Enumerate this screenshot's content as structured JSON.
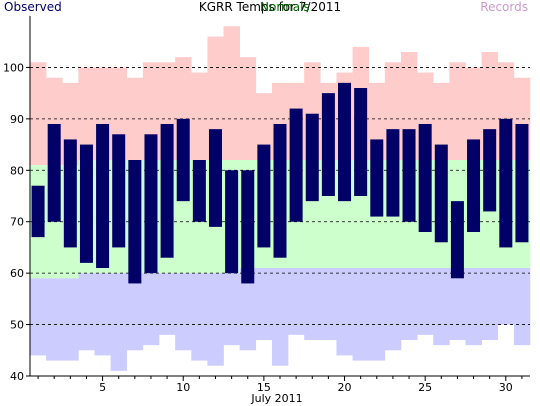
{
  "chart_data": {
    "type": "bar",
    "title": "KGRR Temps for 7/2011",
    "legend": {
      "observed_label": "Observed",
      "normals_label": "Normals",
      "records_label": "Records",
      "placement": "top"
    },
    "xlabel": "July 2011",
    "ylabel": "",
    "xlim": [
      1,
      31
    ],
    "ylim": [
      40,
      110
    ],
    "x_ticks": [
      5,
      10,
      15,
      20,
      25,
      30
    ],
    "y_ticks": [
      40,
      50,
      60,
      70,
      80,
      90,
      100
    ],
    "grid": "horizontal dashed",
    "colors": {
      "observed": "#000066",
      "normals": "#ccffcc",
      "record_high": "#ffcccc",
      "record_low": "#ccccff",
      "legend_observed": "#000066",
      "legend_normals": "#006600",
      "legend_records": "#cc99cc"
    },
    "days": [
      1,
      2,
      3,
      4,
      5,
      6,
      7,
      8,
      9,
      10,
      11,
      12,
      13,
      14,
      15,
      16,
      17,
      18,
      19,
      20,
      21,
      22,
      23,
      24,
      25,
      26,
      27,
      28,
      29,
      30,
      31
    ],
    "series": [
      {
        "name": "Observed",
        "high": [
          77,
          89,
          86,
          85,
          89,
          87,
          82,
          87,
          89,
          90,
          82,
          88,
          80,
          80,
          85,
          89,
          92,
          91,
          95,
          97,
          96,
          86,
          88,
          88,
          89,
          85,
          74,
          86,
          88,
          90,
          89
        ],
        "low": [
          67,
          70,
          65,
          62,
          61,
          65,
          58,
          60,
          63,
          74,
          70,
          69,
          60,
          58,
          65,
          63,
          70,
          74,
          75,
          74,
          75,
          71,
          71,
          70,
          68,
          66,
          59,
          68,
          72,
          65,
          66
        ]
      },
      {
        "name": "Normals",
        "high": [
          81,
          81,
          81,
          82,
          82,
          82,
          82,
          82,
          82,
          82,
          82,
          82,
          82,
          82,
          82,
          82,
          82,
          82,
          82,
          82,
          82,
          82,
          82,
          82,
          82,
          82,
          82,
          82,
          82,
          82,
          82
        ],
        "low": [
          59,
          59,
          59,
          60,
          60,
          60,
          60,
          60,
          60,
          60,
          60,
          60,
          60,
          61,
          61,
          61,
          61,
          61,
          61,
          61,
          61,
          61,
          61,
          61,
          61,
          61,
          61,
          61,
          61,
          61,
          61
        ]
      },
      {
        "name": "Records",
        "high": [
          101,
          98,
          97,
          100,
          100,
          100,
          98,
          101,
          101,
          102,
          99,
          106,
          108,
          102,
          95,
          97,
          97,
          101,
          97,
          99,
          104,
          97,
          101,
          103,
          99,
          97,
          101,
          100,
          103,
          101,
          98
        ],
        "low": [
          44,
          43,
          43,
          45,
          44,
          41,
          45,
          46,
          48,
          45,
          43,
          42,
          46,
          45,
          47,
          42,
          48,
          47,
          47,
          44,
          43,
          43,
          45,
          47,
          48,
          46,
          47,
          46,
          47,
          50,
          46
        ]
      }
    ]
  }
}
